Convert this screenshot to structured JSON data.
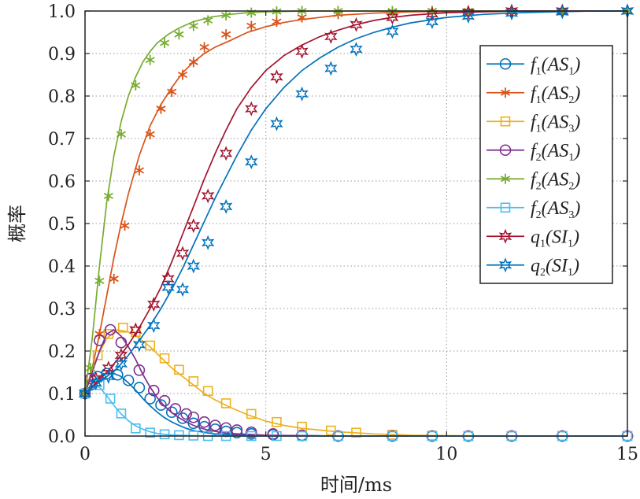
{
  "chart_data": {
    "type": "line",
    "title": "",
    "xlabel": "时间/ms",
    "ylabel": "概率",
    "xlim": [
      0,
      15
    ],
    "ylim": [
      0,
      1
    ],
    "xticks": [
      0,
      5,
      10,
      15
    ],
    "yticks": [
      "0.0",
      "0.1",
      "0.2",
      "0.3",
      "0.4",
      "0.5",
      "0.6",
      "0.7",
      "0.8",
      "0.9",
      "1.0"
    ],
    "grid": true,
    "legend_position": "right",
    "series": [
      {
        "name": "f1(AS1)",
        "label_fn": "f",
        "label_fn_sub": "1",
        "label_arg": "AS",
        "label_arg_sub": "1",
        "marker": "circle",
        "color": "#0072BD",
        "x": [
          0,
          0.2,
          0.4,
          0.6,
          0.8,
          1.0,
          1.2,
          1.4,
          1.6,
          1.8,
          2.0,
          2.2,
          2.4,
          2.6,
          2.8,
          3.0,
          3.2,
          3.4,
          3.6,
          3.8,
          4.0,
          4.5,
          5.0,
          6.0,
          7.0,
          8.0,
          9.0,
          10.0,
          11.0,
          12.0,
          13.0,
          14.0,
          15.0
        ],
        "y": [
          0.1,
          0.125,
          0.14,
          0.148,
          0.147,
          0.14,
          0.125,
          0.108,
          0.088,
          0.071,
          0.056,
          0.043,
          0.033,
          0.025,
          0.018,
          0.013,
          0.01,
          0.007,
          0.005,
          0.004,
          0.003,
          0.002,
          0.001,
          0.001,
          0.0,
          0.0,
          0.0,
          0.0,
          0.0,
          0.0,
          0.0,
          0.0,
          0.0
        ],
        "marker_x": [
          0,
          0.15,
          0.35,
          0.6,
          0.9,
          1.2,
          1.5,
          1.8,
          2.1,
          2.4,
          2.7,
          3.0,
          3.3,
          3.6,
          3.9,
          4.2,
          4.6,
          5.2,
          6.0,
          7.0,
          8.5,
          9.6,
          10.6,
          11.8,
          13.2,
          15.0
        ],
        "marker_y": [
          0.1,
          0.12,
          0.14,
          0.147,
          0.144,
          0.131,
          0.114,
          0.088,
          0.073,
          0.056,
          0.042,
          0.03,
          0.022,
          0.016,
          0.011,
          0.008,
          0.005,
          0.003,
          0.001,
          0.0,
          0.0,
          0.0,
          0.0,
          0.0,
          0.0,
          0.0
        ]
      },
      {
        "name": "f1(AS2)",
        "label_fn": "f",
        "label_fn_sub": "1",
        "label_arg": "AS",
        "label_arg_sub": "2",
        "marker": "star",
        "color": "#D95319",
        "x": [
          0,
          0.2,
          0.4,
          0.6,
          0.8,
          1.0,
          1.2,
          1.5,
          1.8,
          2.1,
          2.4,
          2.7,
          3.0,
          3.3,
          3.6,
          4.0,
          4.5,
          5.0,
          5.5,
          6.0,
          7.0,
          8.0,
          9.0,
          10.0,
          11.0,
          12.0,
          13.0,
          14.0,
          15.0
        ],
        "y": [
          0.1,
          0.16,
          0.24,
          0.33,
          0.42,
          0.5,
          0.57,
          0.66,
          0.73,
          0.78,
          0.82,
          0.855,
          0.88,
          0.9,
          0.915,
          0.93,
          0.95,
          0.963,
          0.973,
          0.98,
          0.99,
          0.995,
          0.998,
          0.999,
          1.0,
          1.0,
          1.0,
          1.0,
          1.0
        ],
        "marker_x": [
          0,
          0.4,
          0.8,
          1.1,
          1.5,
          1.8,
          2.1,
          2.4,
          2.7,
          3.0,
          3.3,
          3.9,
          4.6,
          5.3,
          6.0,
          7.0,
          8.5,
          9.6,
          10.6,
          11.8,
          13.2,
          15.0
        ],
        "marker_y": [
          0.1,
          0.24,
          0.37,
          0.495,
          0.625,
          0.71,
          0.77,
          0.81,
          0.85,
          0.88,
          0.915,
          0.945,
          0.965,
          0.975,
          0.985,
          0.993,
          0.997,
          1.0,
          1.0,
          1.0,
          1.0,
          1.0
        ]
      },
      {
        "name": "f1(AS3)",
        "label_fn": "f",
        "label_fn_sub": "1",
        "label_arg": "AS",
        "label_arg_sub": "3",
        "marker": "square",
        "color": "#EDB120",
        "x": [
          0,
          0.3,
          0.6,
          0.9,
          1.2,
          1.5,
          1.8,
          2.1,
          2.4,
          2.7,
          3.0,
          3.3,
          3.6,
          4.0,
          4.5,
          5.0,
          5.5,
          6.0,
          7.0,
          8.0,
          9.0,
          10.0,
          11.0,
          12.0,
          13.0,
          14.0,
          15.0
        ],
        "y": [
          0.1,
          0.18,
          0.23,
          0.25,
          0.245,
          0.23,
          0.21,
          0.185,
          0.16,
          0.14,
          0.12,
          0.1,
          0.085,
          0.068,
          0.05,
          0.035,
          0.025,
          0.018,
          0.01,
          0.005,
          0.002,
          0.001,
          0.0,
          0.0,
          0.0,
          0.0,
          0.0
        ],
        "marker_x": [
          0,
          0.35,
          0.65,
          1.05,
          1.4,
          1.8,
          2.2,
          2.6,
          3.0,
          3.4,
          3.9,
          4.6,
          5.3,
          6.0,
          6.8,
          7.5,
          8.5,
          9.6,
          10.6,
          11.8,
          13.2,
          15.0
        ],
        "marker_y": [
          0.1,
          0.19,
          0.24,
          0.255,
          0.245,
          0.213,
          0.183,
          0.156,
          0.129,
          0.106,
          0.077,
          0.052,
          0.033,
          0.022,
          0.013,
          0.008,
          0.003,
          0.001,
          0.0,
          0.0,
          0.0,
          0.0
        ]
      },
      {
        "name": "f2(AS1)",
        "label_fn": "f",
        "label_fn_sub": "2",
        "label_arg": "AS",
        "label_arg_sub": "1",
        "marker": "circle",
        "color": "#7E2F8E",
        "x": [
          0,
          0.2,
          0.4,
          0.6,
          0.8,
          1.0,
          1.2,
          1.4,
          1.6,
          1.8,
          2.0,
          2.2,
          2.4,
          2.6,
          2.8,
          3.0,
          3.2,
          3.4,
          3.6,
          3.8,
          4.0,
          4.5,
          5.0,
          6.0,
          7.0,
          8.0,
          9.0,
          10.0,
          11.0,
          12.0,
          13.0,
          14.0,
          15.0
        ],
        "y": [
          0.1,
          0.15,
          0.2,
          0.24,
          0.25,
          0.235,
          0.21,
          0.18,
          0.145,
          0.115,
          0.09,
          0.07,
          0.055,
          0.043,
          0.033,
          0.025,
          0.019,
          0.014,
          0.011,
          0.008,
          0.006,
          0.004,
          0.002,
          0.001,
          0.0,
          0.0,
          0.0,
          0.0,
          0.0,
          0.0,
          0.0,
          0.0,
          0.0
        ],
        "marker_x": [
          0,
          0.15,
          0.4,
          0.7,
          1.0,
          1.5,
          1.9,
          2.2,
          2.5,
          2.8,
          3.0,
          3.3,
          3.6,
          3.9,
          4.2,
          4.6,
          5.2,
          6.0,
          7.0,
          8.5,
          9.6,
          10.6,
          11.8,
          13.2,
          15.0
        ],
        "marker_y": [
          0.1,
          0.135,
          0.225,
          0.25,
          0.22,
          0.155,
          0.107,
          0.083,
          0.064,
          0.052,
          0.044,
          0.033,
          0.025,
          0.019,
          0.014,
          0.009,
          0.005,
          0.002,
          0.0,
          0.0,
          0.0,
          0.0,
          0.0,
          0.0,
          0.0
        ]
      },
      {
        "name": "f2(AS2)",
        "label_fn": "f",
        "label_fn_sub": "2",
        "label_arg": "AS",
        "label_arg_sub": "2",
        "marker": "star",
        "color": "#77AC30",
        "x": [
          0,
          0.2,
          0.4,
          0.6,
          0.8,
          1.0,
          1.2,
          1.4,
          1.6,
          1.8,
          2.0,
          2.3,
          2.6,
          3.0,
          3.5,
          4.0,
          4.5,
          5.0,
          6.0,
          7.0,
          8.0,
          9.0,
          10.0,
          11.0,
          12.0,
          13.0,
          14.0,
          15.0
        ],
        "y": [
          0.1,
          0.23,
          0.4,
          0.55,
          0.66,
          0.74,
          0.8,
          0.845,
          0.88,
          0.905,
          0.925,
          0.945,
          0.96,
          0.975,
          0.986,
          0.992,
          0.996,
          0.998,
          1.0,
          1.0,
          1.0,
          1.0,
          1.0,
          1.0,
          1.0,
          1.0,
          1.0,
          1.0
        ],
        "marker_x": [
          0,
          0.15,
          0.4,
          0.65,
          1.0,
          1.4,
          1.8,
          2.2,
          2.6,
          3.0,
          3.4,
          3.9,
          4.6,
          5.3,
          6.0,
          7.0,
          8.5,
          9.6,
          10.6,
          11.8,
          13.2,
          15.0
        ],
        "marker_y": [
          0.1,
          0.16,
          0.365,
          0.565,
          0.71,
          0.825,
          0.885,
          0.925,
          0.945,
          0.965,
          0.978,
          0.99,
          0.996,
          0.999,
          1.0,
          1.0,
          1.0,
          1.0,
          1.0,
          1.0,
          1.0,
          1.0
        ]
      },
      {
        "name": "f2(AS3)",
        "label_fn": "f",
        "label_fn_sub": "2",
        "label_arg": "AS",
        "label_arg_sub": "3",
        "marker": "square",
        "color": "#4DBEEE",
        "x": [
          0,
          0.2,
          0.4,
          0.6,
          0.8,
          1.0,
          1.2,
          1.4,
          1.6,
          1.8,
          2.0,
          2.3,
          2.6,
          3.0,
          3.5,
          4.0,
          5.0,
          6.0,
          7.0,
          8.0,
          9.0,
          10.0,
          11.0,
          12.0,
          13.0,
          14.0,
          15.0
        ],
        "y": [
          0.1,
          0.118,
          0.115,
          0.095,
          0.072,
          0.052,
          0.036,
          0.024,
          0.016,
          0.01,
          0.006,
          0.003,
          0.002,
          0.001,
          0.0,
          0.0,
          0.0,
          0.0,
          0.0,
          0.0,
          0.0,
          0.0,
          0.0,
          0.0,
          0.0,
          0.0,
          0.0
        ],
        "marker_x": [
          0,
          0.4,
          0.7,
          1.0,
          1.4,
          1.8,
          2.2,
          2.6,
          3.0,
          3.4,
          3.9,
          4.6,
          5.3,
          6.0,
          7.0,
          8.5,
          9.6,
          10.6,
          11.8,
          13.2,
          15.0
        ],
        "marker_y": [
          0.1,
          0.12,
          0.088,
          0.053,
          0.018,
          0.008,
          0.004,
          0.002,
          0.001,
          0.0,
          0.0,
          0.0,
          0.0,
          0.0,
          0.0,
          0.0,
          0.0,
          0.0,
          0.0,
          0.0,
          0.0
        ]
      },
      {
        "name": "q1(SI1)",
        "label_fn": "q",
        "label_fn_sub": "1",
        "label_arg": "SI",
        "label_arg_sub": "1",
        "marker": "hexagram",
        "color": "#A2142F",
        "x": [
          0,
          0.3,
          0.6,
          0.9,
          1.2,
          1.5,
          1.8,
          2.1,
          2.4,
          2.7,
          3.0,
          3.3,
          3.6,
          3.9,
          4.2,
          4.6,
          5.0,
          5.5,
          6.0,
          6.5,
          7.0,
          7.5,
          8.0,
          8.5,
          9.0,
          10.0,
          11.0,
          12.0,
          13.0,
          14.0,
          15.0
        ],
        "y": [
          0.1,
          0.125,
          0.15,
          0.18,
          0.215,
          0.255,
          0.3,
          0.35,
          0.41,
          0.475,
          0.54,
          0.605,
          0.665,
          0.72,
          0.77,
          0.82,
          0.86,
          0.895,
          0.92,
          0.94,
          0.955,
          0.968,
          0.978,
          0.985,
          0.99,
          0.996,
          0.998,
          1.0,
          1.0,
          1.0,
          1.0
        ],
        "marker_x": [
          0,
          0.3,
          0.65,
          1.0,
          1.4,
          1.9,
          2.3,
          2.7,
          3.0,
          3.4,
          3.9,
          4.6,
          5.3,
          6.0,
          6.8,
          7.5,
          8.5,
          9.6,
          10.6,
          11.8,
          13.2,
          15.0
        ],
        "marker_y": [
          0.1,
          0.135,
          0.16,
          0.19,
          0.25,
          0.31,
          0.37,
          0.43,
          0.495,
          0.565,
          0.665,
          0.77,
          0.845,
          0.905,
          0.94,
          0.968,
          0.985,
          0.993,
          0.997,
          1.0,
          1.0,
          1.0
        ]
      },
      {
        "name": "q2(SI1)",
        "label_fn": "q",
        "label_fn_sub": "2",
        "label_arg": "SI",
        "label_arg_sub": "1",
        "marker": "hexagram",
        "color": "#0072BD",
        "x": [
          0,
          0.3,
          0.6,
          0.9,
          1.2,
          1.5,
          1.8,
          2.1,
          2.4,
          2.7,
          3.0,
          3.3,
          3.6,
          3.9,
          4.2,
          4.6,
          5.0,
          5.5,
          6.0,
          6.5,
          7.0,
          7.5,
          8.0,
          8.5,
          9.0,
          10.0,
          11.0,
          12.0,
          13.0,
          14.0,
          15.0
        ],
        "y": [
          0.1,
          0.12,
          0.14,
          0.16,
          0.19,
          0.225,
          0.26,
          0.3,
          0.345,
          0.395,
          0.45,
          0.505,
          0.56,
          0.61,
          0.66,
          0.72,
          0.77,
          0.82,
          0.86,
          0.89,
          0.915,
          0.935,
          0.95,
          0.962,
          0.972,
          0.985,
          0.992,
          0.996,
          0.998,
          1.0,
          1.0
        ],
        "marker_x": [
          0,
          0.3,
          0.65,
          1.0,
          1.5,
          1.9,
          2.3,
          2.7,
          3.0,
          3.4,
          3.9,
          4.6,
          5.3,
          6.0,
          6.8,
          7.5,
          8.5,
          9.6,
          10.6,
          11.8,
          13.2,
          15.0
        ],
        "marker_y": [
          0.1,
          0.125,
          0.14,
          0.17,
          0.215,
          0.26,
          0.35,
          0.345,
          0.4,
          0.455,
          0.54,
          0.645,
          0.735,
          0.805,
          0.865,
          0.91,
          0.952,
          0.975,
          0.988,
          0.995,
          0.998,
          1.0
        ]
      }
    ]
  }
}
